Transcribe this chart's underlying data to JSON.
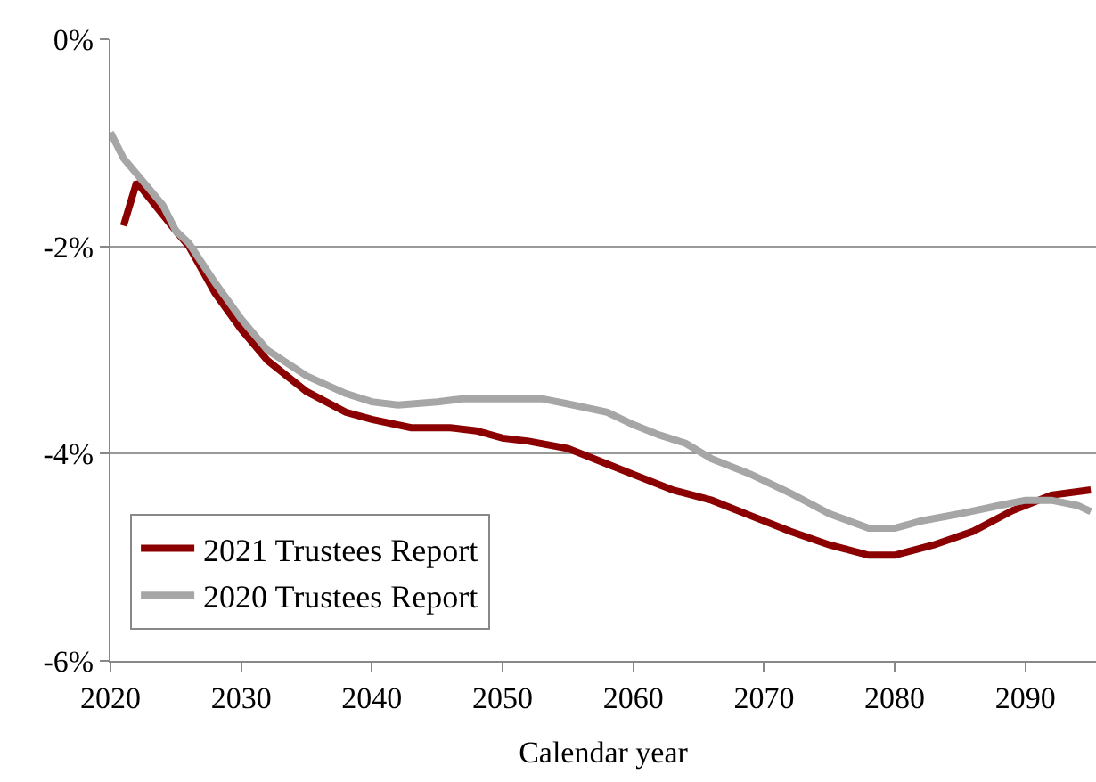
{
  "chart_data": {
    "type": "line",
    "xlabel": "Calendar year",
    "xlim": [
      2020,
      2095.4
    ],
    "xticks": [
      2020,
      2030,
      2040,
      2050,
      2060,
      2070,
      2080,
      2090
    ],
    "ylim": [
      -6,
      0
    ],
    "yticks": [
      {
        "value": -6,
        "label": "-6%"
      },
      {
        "value": -4,
        "label": "-4%"
      },
      {
        "value": -2,
        "label": "-2%"
      },
      {
        "value": 0,
        "label": "0%"
      }
    ],
    "grid": "y",
    "legend": "bottom left",
    "marker": "none",
    "line_style": "solid",
    "series": [
      {
        "name": "2021 Trustees Report",
        "color": "#8b0000",
        "x": [
          2021,
          2022,
          2025,
          2026,
          2028,
          2030,
          2032,
          2035,
          2038,
          2040,
          2043,
          2046,
          2048,
          2050,
          2052,
          2055,
          2058,
          2060,
          2063,
          2066,
          2069,
          2072,
          2075,
          2078,
          2080,
          2083,
          2086,
          2089,
          2092,
          2095
        ],
        "values": [
          -1.8,
          -1.38,
          -1.85,
          -2.0,
          -2.45,
          -2.8,
          -3.1,
          -3.4,
          -3.6,
          -3.67,
          -3.75,
          -3.75,
          -3.78,
          -3.85,
          -3.88,
          -3.95,
          -4.1,
          -4.2,
          -4.35,
          -4.45,
          -4.6,
          -4.75,
          -4.88,
          -4.98,
          -4.98,
          -4.88,
          -4.75,
          -4.55,
          -4.4,
          -4.35
        ]
      },
      {
        "name": "2020 Trustees Report",
        "color": "#a6a6a6",
        "x": [
          2020,
          2021,
          2022,
          2024,
          2025,
          2026,
          2028,
          2030,
          2032,
          2035,
          2038,
          2040,
          2042,
          2045,
          2047,
          2050,
          2053,
          2055,
          2058,
          2060,
          2062,
          2064,
          2066,
          2069,
          2072,
          2075,
          2078,
          2080,
          2082,
          2085,
          2088,
          2090,
          2092,
          2094,
          2095
        ],
        "values": [
          -0.9,
          -1.15,
          -1.3,
          -1.6,
          -1.85,
          -1.97,
          -2.35,
          -2.7,
          -3.0,
          -3.25,
          -3.42,
          -3.5,
          -3.53,
          -3.5,
          -3.47,
          -3.47,
          -3.47,
          -3.52,
          -3.6,
          -3.72,
          -3.82,
          -3.9,
          -4.05,
          -4.2,
          -4.38,
          -4.58,
          -4.72,
          -4.72,
          -4.65,
          -4.58,
          -4.5,
          -4.45,
          -4.45,
          -4.5,
          -4.56
        ]
      }
    ]
  }
}
